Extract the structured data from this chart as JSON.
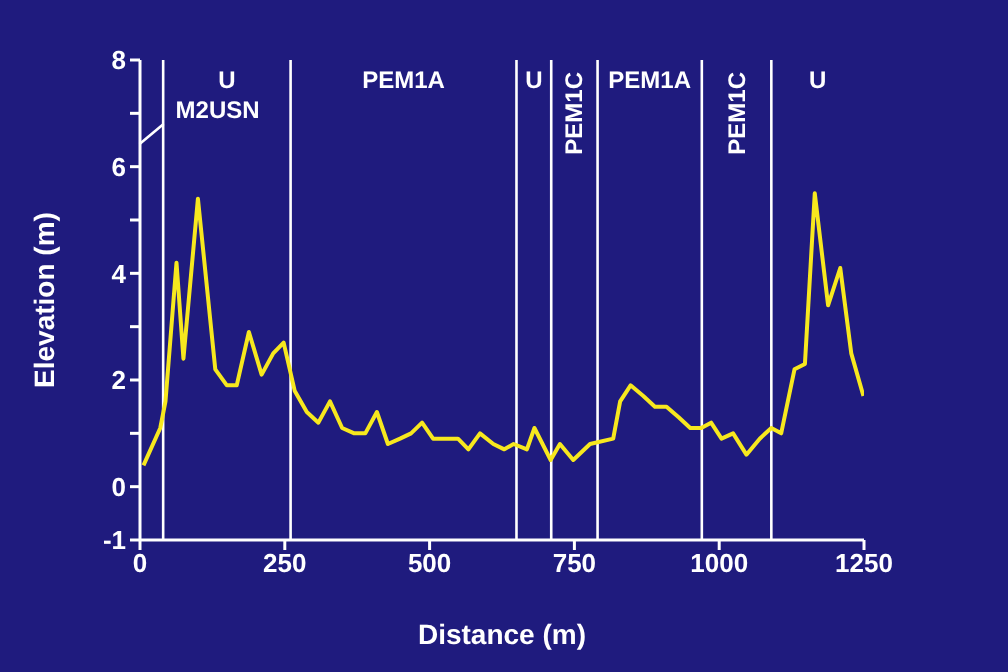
{
  "chart_data": {
    "type": "line",
    "xlabel": "Distance (m)",
    "ylabel": "Elevation (m)",
    "x": [
      6,
      35,
      44,
      63,
      75,
      100,
      130,
      150,
      167,
      188,
      210,
      230,
      248,
      267,
      288,
      308,
      328,
      349,
      370,
      389,
      409,
      428,
      449,
      468,
      487,
      506,
      530,
      549,
      567,
      587,
      610,
      629,
      645,
      668,
      681,
      709,
      725,
      748,
      777,
      817,
      829,
      847,
      869,
      889,
      909,
      930,
      950,
      969,
      986,
      1004,
      1024,
      1047,
      1070,
      1090,
      1107,
      1130,
      1148,
      1165,
      1188,
      1209,
      1228,
      1249
    ],
    "series": [
      {
        "color": "#f7e81e",
        "values": [
          0.4,
          1.1,
          1.6,
          4.2,
          2.4,
          5.4,
          2.2,
          1.9,
          1.9,
          2.9,
          2.1,
          2.5,
          2.7,
          1.8,
          1.4,
          1.2,
          1.6,
          1.1,
          1.0,
          1.0,
          1.4,
          0.8,
          0.9,
          1.0,
          1.2,
          0.9,
          0.9,
          0.9,
          0.7,
          1.0,
          0.8,
          0.7,
          0.8,
          0.7,
          1.1,
          0.5,
          0.8,
          0.5,
          0.8,
          0.9,
          1.6,
          1.9,
          1.7,
          1.5,
          1.5,
          1.3,
          1.1,
          1.1,
          1.2,
          0.9,
          1.0,
          0.6,
          0.9,
          1.1,
          1.0,
          2.2,
          2.3,
          5.5,
          3.4,
          4.1,
          2.5,
          1.7
        ]
      }
    ],
    "xlim": [
      0,
      1250
    ],
    "xticks": [
      0,
      250,
      500,
      750,
      1000,
      1250
    ],
    "ylim": [
      -1,
      8
    ],
    "yticks": [
      -1,
      0,
      {
        "value": 1,
        "label": null
      },
      2,
      {
        "value": 3,
        "label": null
      },
      4,
      {
        "value": 5,
        "label": null
      },
      6,
      {
        "value": 7,
        "label": null
      },
      8
    ],
    "ref_lines": [
      {
        "axis": "x",
        "value": 40,
        "color": "#ffffff"
      },
      {
        "axis": "x",
        "value": 260,
        "color": "#ffffff"
      },
      {
        "axis": "x",
        "value": 650,
        "color": "#ffffff"
      },
      {
        "axis": "x",
        "value": 710,
        "color": "#ffffff"
      },
      {
        "axis": "x",
        "value": 790,
        "color": "#ffffff"
      },
      {
        "axis": "x",
        "value": 970,
        "color": "#ffffff"
      },
      {
        "axis": "x",
        "value": 1090,
        "color": "#ffffff"
      }
    ],
    "annotations": [
      "M2USN",
      "U",
      "PEM1A",
      "U",
      "PEM1C",
      "PEM1A",
      "PEM1C",
      "U"
    ],
    "grid": false,
    "legend": false,
    "marker": "none",
    "line_style": "solid"
  }
}
